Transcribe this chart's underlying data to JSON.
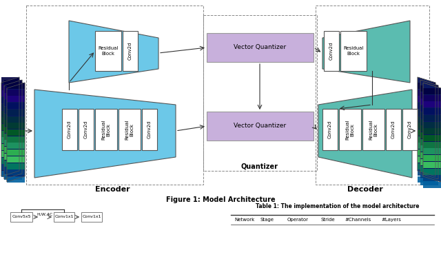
{
  "title": "Figure 1: Model Architecture",
  "bg_color": "#ffffff",
  "encoder_label": "Encoder",
  "decoder_label": "Decoder",
  "quantizer_label": "Quantizer",
  "table_title": "Table 1: The implementation of the model architecture",
  "table_headers": [
    "Network",
    "Stage",
    "Operator",
    "Stride",
    "#Channels",
    "#Layers"
  ],
  "enc_color": "#6CC8E8",
  "dec_color": "#5BBCB0",
  "purple_color": "#C8B0DC",
  "arrow_color": "#333333",
  "border_color": "#555555",
  "dash_color": "#888888"
}
